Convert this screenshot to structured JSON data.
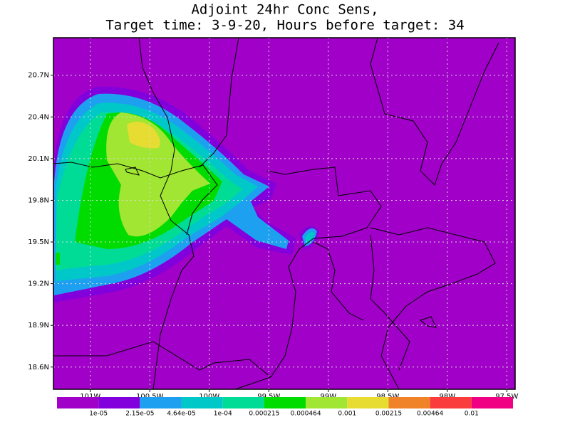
{
  "title": [
    "Adjoint 24hr Conc Sens,",
    "Target time: 3-9-20, Hours before target: 34"
  ],
  "map": {
    "lon_range": [
      -101.31,
      -97.43
    ],
    "lat_range": [
      18.44,
      20.97
    ],
    "lon_ticks": [
      {
        "value": -101,
        "label": "101W"
      },
      {
        "value": -100.5,
        "label": "100.5W"
      },
      {
        "value": -100,
        "label": "100W"
      },
      {
        "value": -99.5,
        "label": "99.5W"
      },
      {
        "value": -99,
        "label": "99W"
      },
      {
        "value": -98.5,
        "label": "98.5W"
      },
      {
        "value": -98,
        "label": "98W"
      },
      {
        "value": -97.5,
        "label": "97.5W"
      }
    ],
    "lat_ticks": [
      {
        "value": 20.7,
        "label": "20.7N"
      },
      {
        "value": 20.4,
        "label": "20.4N"
      },
      {
        "value": 20.1,
        "label": "20.1N"
      },
      {
        "value": 19.8,
        "label": "19.8N"
      },
      {
        "value": 19.5,
        "label": "19.5N"
      },
      {
        "value": 19.2,
        "label": "19.2N"
      },
      {
        "value": 18.9,
        "label": "18.9N"
      },
      {
        "value": 18.6,
        "label": "18.6N"
      }
    ],
    "grid": true
  },
  "colorbar": {
    "colors": [
      "#a000c8",
      "#8200dc",
      "#1ea0f0",
      "#00c8c8",
      "#00dc96",
      "#00dc00",
      "#a0e632",
      "#e6dc32",
      "#f08228",
      "#fa3c3c",
      "#f00082"
    ],
    "labels": [
      "1e-05",
      "2.15e-05",
      "4.64e-05",
      "1e-04",
      "0.000215",
      "0.000464",
      "0.001",
      "0.00215",
      "0.00464",
      "0.01"
    ]
  }
}
